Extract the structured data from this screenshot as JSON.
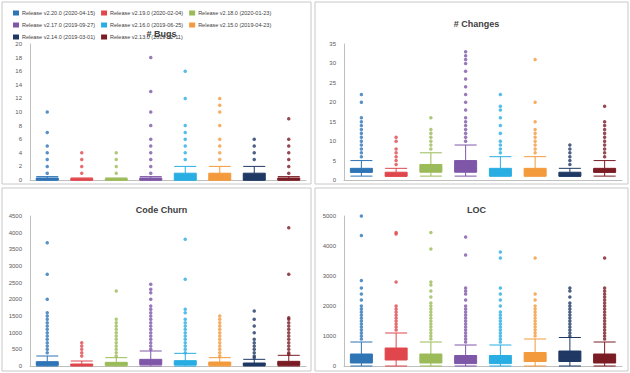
{
  "chart_data": [
    {
      "type": "boxplot",
      "title": "# Bugs",
      "legend": "top",
      "grid": false,
      "tick_labels": "y",
      "ylim": [
        0,
        20
      ],
      "yticks": [
        0,
        2,
        4,
        6,
        8,
        10,
        12,
        14,
        16,
        18,
        20
      ],
      "series": [
        {
          "name": "Release v2.20.0 (2020-04-15)",
          "color": "#2e75b6",
          "box": [
            0,
            0,
            0,
            0.3,
            0.5
          ],
          "outliers": [
            1,
            2,
            3,
            4,
            5,
            7,
            10
          ]
        },
        {
          "name": "Release v2.19.0 (2020-02-04)",
          "color": "#e0474c",
          "box": [
            0,
            0,
            0,
            0.2,
            0.3
          ],
          "outliers": [
            1,
            2,
            3,
            4
          ]
        },
        {
          "name": "Release v2.18.0 (2020-01-23)",
          "color": "#9bbb59",
          "box": [
            0,
            0,
            0,
            0.2,
            0.3
          ],
          "outliers": [
            1,
            2,
            3,
            4
          ]
        },
        {
          "name": "Release v2.17.0 (2019-09-27)",
          "color": "#7e57a8",
          "box": [
            0,
            0,
            0,
            0.3,
            0.5
          ],
          "outliers": [
            1,
            2,
            3,
            4,
            5,
            6,
            8,
            10,
            13,
            18
          ]
        },
        {
          "name": "Release v2.16.0 (2019-06-25)",
          "color": "#29aee3",
          "box": [
            0,
            0,
            0,
            1,
            2
          ],
          "outliers": [
            3,
            4,
            5,
            6,
            7,
            8,
            12,
            16
          ]
        },
        {
          "name": "Release v2.15.0 (2019-04-23)",
          "color": "#f39a3c",
          "box": [
            0,
            0,
            0,
            1,
            2
          ],
          "outliers": [
            3,
            4,
            5,
            6,
            8,
            10,
            11,
            12
          ]
        },
        {
          "name": "Release v2.14.0 (2019-03-01)",
          "color": "#1f3864",
          "box": [
            0,
            0,
            0,
            1,
            2
          ],
          "outliers": [
            3,
            4,
            5,
            6
          ]
        },
        {
          "name": "Release v2.13.0 (2019-02-11)",
          "color": "#7b1c24",
          "box": [
            0,
            0,
            0,
            0.3,
            0.5
          ],
          "outliers": [
            1,
            2,
            3,
            4,
            5,
            6,
            9
          ]
        }
      ]
    },
    {
      "type": "boxplot",
      "title": "# Changes",
      "grid": false,
      "tick_labels": "y",
      "ylim": [
        0,
        35
      ],
      "yticks": [
        0,
        5,
        10,
        15,
        20,
        25,
        30,
        35
      ],
      "series": [
        {
          "color": "#2e75b6",
          "box": [
            1,
            2,
            2,
            3,
            5
          ],
          "outliers": [
            6,
            7,
            8,
            9,
            10,
            11,
            12,
            13,
            14,
            15,
            16,
            20,
            22
          ]
        },
        {
          "color": "#e0474c",
          "box": [
            1,
            1,
            1,
            2,
            3
          ],
          "outliers": [
            4,
            5,
            6,
            7,
            8,
            10,
            11
          ]
        },
        {
          "color": "#9bbb59",
          "box": [
            1,
            2,
            3,
            4,
            7
          ],
          "outliers": [
            8,
            9,
            10,
            11,
            12,
            13,
            16
          ]
        },
        {
          "color": "#7e57a8",
          "box": [
            1,
            2,
            3,
            5,
            9
          ],
          "outliers": [
            10,
            11,
            12,
            13,
            14,
            15,
            16,
            18,
            20,
            22,
            24,
            26,
            28,
            30,
            31,
            32,
            33
          ]
        },
        {
          "color": "#29aee3",
          "box": [
            1,
            1,
            2,
            3,
            6
          ],
          "outliers": [
            7,
            8,
            9,
            10,
            12,
            14,
            16,
            18,
            19,
            22
          ]
        },
        {
          "color": "#f39a3c",
          "box": [
            1,
            1,
            2,
            3,
            6
          ],
          "outliers": [
            7,
            8,
            9,
            10,
            11,
            12,
            13,
            15,
            20,
            31
          ]
        },
        {
          "color": "#1f3864",
          "box": [
            1,
            1,
            1,
            2,
            3
          ],
          "outliers": [
            4,
            5,
            6,
            7,
            8,
            9
          ]
        },
        {
          "color": "#7b1c24",
          "box": [
            1,
            2,
            2,
            3,
            5
          ],
          "outliers": [
            6,
            7,
            8,
            9,
            10,
            11,
            12,
            13,
            14,
            15,
            19
          ]
        }
      ]
    },
    {
      "type": "boxplot",
      "title": "Code Churn",
      "grid": false,
      "tick_labels": "y",
      "ylim": [
        0,
        4500
      ],
      "yticks": [
        0,
        500,
        1000,
        1500,
        2000,
        2500,
        3000,
        3500,
        4000,
        4500
      ],
      "series": [
        {
          "color": "#2e75b6",
          "box": [
            0,
            20,
            50,
            130,
            300
          ],
          "outliers": [
            400,
            500,
            600,
            700,
            800,
            900,
            1000,
            1100,
            1200,
            1300,
            1400,
            1500,
            1600,
            2000,
            2750,
            3700
          ]
        },
        {
          "color": "#e0474c",
          "box": [
            0,
            10,
            30,
            60,
            150
          ],
          "outliers": [
            300,
            400,
            500,
            600,
            700
          ]
        },
        {
          "color": "#9bbb59",
          "box": [
            0,
            20,
            60,
            110,
            250
          ],
          "outliers": [
            300,
            400,
            500,
            600,
            700,
            800,
            900,
            1000,
            1100,
            1200,
            1300,
            1400,
            2250
          ]
        },
        {
          "color": "#7e57a8",
          "box": [
            0,
            40,
            90,
            200,
            450
          ],
          "outliers": [
            500,
            600,
            700,
            800,
            900,
            1000,
            1100,
            1200,
            1300,
            1400,
            1500,
            1600,
            1700,
            1800,
            2000,
            2200,
            2300,
            2450
          ]
        },
        {
          "color": "#29aee3",
          "box": [
            0,
            30,
            70,
            160,
            380
          ],
          "outliers": [
            400,
            500,
            600,
            700,
            800,
            900,
            1000,
            1100,
            1200,
            1300,
            1400,
            1600,
            1700,
            2600,
            3800
          ]
        },
        {
          "color": "#f39a3c",
          "box": [
            0,
            20,
            50,
            120,
            250
          ],
          "outliers": [
            300,
            400,
            500,
            600,
            700,
            800,
            900,
            1000,
            1100,
            1200,
            1300,
            1400,
            1500
          ]
        },
        {
          "color": "#1f3864",
          "box": [
            0,
            15,
            40,
            90,
            200
          ],
          "outliers": [
            250,
            300,
            400,
            500,
            600,
            700,
            800,
            1000,
            1200,
            1400,
            1650
          ]
        },
        {
          "color": "#7b1c24",
          "box": [
            0,
            20,
            60,
            140,
            320
          ],
          "outliers": [
            350,
            400,
            500,
            600,
            700,
            800,
            900,
            1000,
            1100,
            1200,
            1300,
            1400,
            1450,
            2750,
            4150
          ]
        }
      ]
    },
    {
      "type": "boxplot",
      "title": "LOC",
      "grid": false,
      "tick_labels": "y",
      "ylim": [
        0,
        5000
      ],
      "yticks": [
        0,
        1000,
        2000,
        3000,
        4000,
        5000
      ],
      "series": [
        {
          "color": "#2e75b6",
          "box": [
            0,
            100,
            200,
            400,
            800
          ],
          "outliers": [
            900,
            1000,
            1100,
            1200,
            1300,
            1400,
            1500,
            1600,
            1700,
            1800,
            1900,
            2000,
            2200,
            2400,
            2600,
            2850,
            4350,
            5000
          ]
        },
        {
          "color": "#e0474c",
          "box": [
            0,
            200,
            350,
            600,
            1100
          ],
          "outliers": [
            1200,
            1300,
            1400,
            1500,
            1600,
            1700,
            1800,
            1900,
            2000,
            2800,
            4400,
            4450
          ]
        },
        {
          "color": "#9bbb59",
          "box": [
            0,
            100,
            200,
            400,
            800
          ],
          "outliers": [
            900,
            1000,
            1100,
            1200,
            1300,
            1400,
            1500,
            1600,
            1700,
            1800,
            1900,
            2000,
            2100,
            2300,
            2500,
            2700,
            2800,
            3900,
            4450
          ]
        },
        {
          "color": "#7e57a8",
          "box": [
            0,
            80,
            170,
            350,
            700
          ],
          "outliers": [
            800,
            900,
            1000,
            1100,
            1200,
            1300,
            1400,
            1500,
            1600,
            1700,
            1800,
            1900,
            2000,
            2200,
            2400,
            2500,
            2600,
            3700,
            4300
          ]
        },
        {
          "color": "#29aee3",
          "box": [
            0,
            80,
            180,
            350,
            700
          ],
          "outliers": [
            800,
            900,
            1000,
            1100,
            1200,
            1300,
            1400,
            1500,
            1600,
            1700,
            1800,
            2000,
            2200,
            2400,
            2600,
            3600,
            3800
          ]
        },
        {
          "color": "#f39a3c",
          "box": [
            0,
            150,
            300,
            450,
            900
          ],
          "outliers": [
            1000,
            1100,
            1200,
            1300,
            1400,
            1500,
            1600,
            1700,
            1800,
            1900,
            2000,
            2200,
            2400,
            3600
          ]
        },
        {
          "color": "#1f3864",
          "box": [
            0,
            150,
            300,
            500,
            950
          ],
          "outliers": [
            1000,
            1100,
            1200,
            1300,
            1400,
            1500,
            1600,
            1700,
            1800,
            1900,
            2000,
            2100,
            2300,
            2500,
            2600
          ]
        },
        {
          "color": "#7b1c24",
          "box": [
            0,
            100,
            200,
            400,
            800
          ],
          "outliers": [
            900,
            1000,
            1100,
            1200,
            1300,
            1400,
            1500,
            1600,
            1700,
            1800,
            1900,
            2000,
            2100,
            2200,
            2300,
            2400,
            2500,
            2600,
            3600
          ]
        }
      ]
    }
  ]
}
